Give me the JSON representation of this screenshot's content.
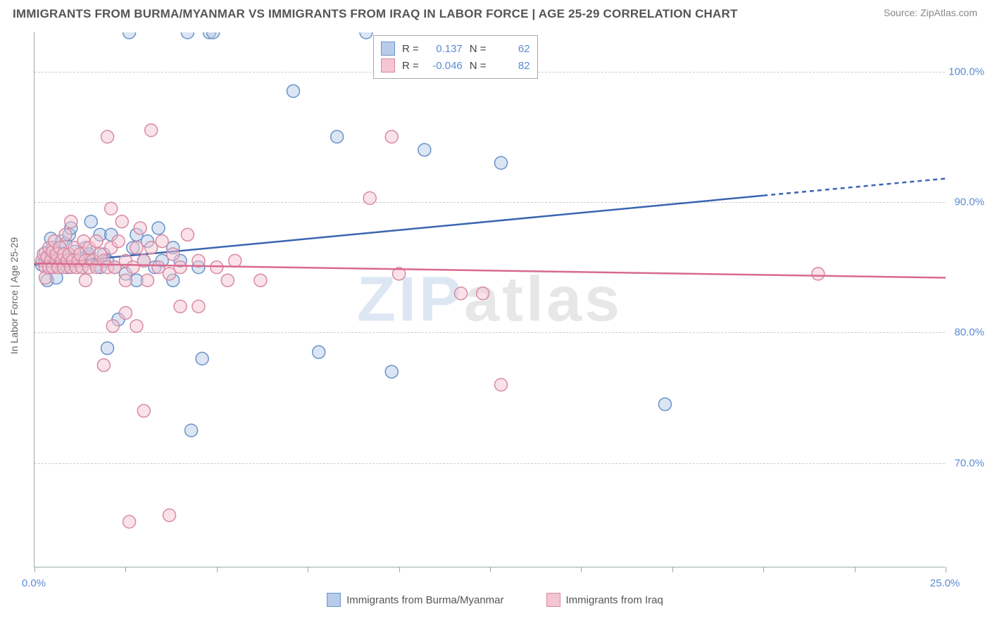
{
  "header": {
    "title": "IMMIGRANTS FROM BURMA/MYANMAR VS IMMIGRANTS FROM IRAQ IN LABOR FORCE | AGE 25-29 CORRELATION CHART",
    "source": "Source: ZipAtlas.com"
  },
  "watermark": {
    "z": "ZIP",
    "rest": "atlas"
  },
  "chart": {
    "type": "scatter",
    "y_axis_title": "In Labor Force | Age 25-29",
    "xlim": [
      0,
      25
    ],
    "ylim": [
      62,
      103
    ],
    "x_tick_positions": [
      0,
      2.5,
      5,
      7.5,
      10,
      12.5,
      15,
      17.5,
      20,
      22.5,
      25
    ],
    "x_tick_labels": {
      "0": "0.0%",
      "25": "25.0%"
    },
    "y_grid": [
      70,
      80,
      90,
      100
    ],
    "y_tick_labels": {
      "70": "70.0%",
      "80": "80.0%",
      "90": "90.0%",
      "100": "100.0%"
    },
    "background_color": "#ffffff",
    "grid_color": "#cccccc",
    "axis_color": "#99aaaa",
    "label_color": "#5b8bd4",
    "marker_radius": 9,
    "marker_opacity": 0.5,
    "marker_border_width": 1.5,
    "series": [
      {
        "name": "Immigrants from Burma/Myanmar",
        "fill": "#b7cce8",
        "stroke": "#6a93c9",
        "trend_color": "#3a66b0",
        "R": "0.137",
        "N": "62",
        "trend": {
          "x1": 0,
          "y1": 85.2,
          "x2_solid": 20,
          "y2_solid": 90.5,
          "x2": 25,
          "y2": 91.8
        },
        "points": [
          [
            0.2,
            85.2
          ],
          [
            0.3,
            86.1
          ],
          [
            0.35,
            84.0
          ],
          [
            0.4,
            85.8
          ],
          [
            0.45,
            87.2
          ],
          [
            0.5,
            85.0
          ],
          [
            0.5,
            86.5
          ],
          [
            0.55,
            85.3
          ],
          [
            0.6,
            86.0
          ],
          [
            0.6,
            84.2
          ],
          [
            0.7,
            85.5
          ],
          [
            0.75,
            87.0
          ],
          [
            0.8,
            85.2
          ],
          [
            0.85,
            86.8
          ],
          [
            0.9,
            85.0
          ],
          [
            0.95,
            87.5
          ],
          [
            1.0,
            85.8
          ],
          [
            1.0,
            88.0
          ],
          [
            1.1,
            86.2
          ],
          [
            1.2,
            85.5
          ],
          [
            1.3,
            85.0
          ],
          [
            1.4,
            86.5
          ],
          [
            1.5,
            85.8
          ],
          [
            1.5,
            86.0
          ],
          [
            1.55,
            88.5
          ],
          [
            1.7,
            85.2
          ],
          [
            1.8,
            87.5
          ],
          [
            1.8,
            85.0
          ],
          [
            1.9,
            86.0
          ],
          [
            2.0,
            85.5
          ],
          [
            2.0,
            78.8
          ],
          [
            2.1,
            87.5
          ],
          [
            2.2,
            85.0
          ],
          [
            2.3,
            81.0
          ],
          [
            2.5,
            84.5
          ],
          [
            2.6,
            103.0
          ],
          [
            2.7,
            86.5
          ],
          [
            2.8,
            84.0
          ],
          [
            2.8,
            87.5
          ],
          [
            3.0,
            85.5
          ],
          [
            3.1,
            87.0
          ],
          [
            3.3,
            85.0
          ],
          [
            3.4,
            88.0
          ],
          [
            3.5,
            85.5
          ],
          [
            3.8,
            84.0
          ],
          [
            3.8,
            86.5
          ],
          [
            4.0,
            85.5
          ],
          [
            4.2,
            103.0
          ],
          [
            4.3,
            72.5
          ],
          [
            4.5,
            85.0
          ],
          [
            4.6,
            78.0
          ],
          [
            4.8,
            103.0
          ],
          [
            4.9,
            103.0
          ],
          [
            7.1,
            98.5
          ],
          [
            7.8,
            78.5
          ],
          [
            8.3,
            95.0
          ],
          [
            9.1,
            103.0
          ],
          [
            9.8,
            77.0
          ],
          [
            10.7,
            94.0
          ],
          [
            12.8,
            93.0
          ],
          [
            17.3,
            74.5
          ],
          [
            0.3,
            85.5
          ]
        ]
      },
      {
        "name": "Immigrants from Iraq",
        "fill": "#f3c6d2",
        "stroke": "#d98aa3",
        "trend_color": "#d86a8f",
        "R": "-0.046",
        "N": "82",
        "trend": {
          "x1": 0,
          "y1": 85.3,
          "x2_solid": 25,
          "y2_solid": 84.2,
          "x2": 25,
          "y2": 84.2
        },
        "points": [
          [
            0.2,
            85.5
          ],
          [
            0.25,
            86.0
          ],
          [
            0.3,
            85.0
          ],
          [
            0.3,
            84.2
          ],
          [
            0.35,
            85.8
          ],
          [
            0.4,
            86.5
          ],
          [
            0.4,
            85.0
          ],
          [
            0.45,
            85.5
          ],
          [
            0.5,
            86.2
          ],
          [
            0.5,
            85.0
          ],
          [
            0.55,
            87.0
          ],
          [
            0.6,
            85.5
          ],
          [
            0.6,
            86.0
          ],
          [
            0.65,
            85.0
          ],
          [
            0.7,
            86.5
          ],
          [
            0.75,
            85.5
          ],
          [
            0.8,
            86.0
          ],
          [
            0.8,
            85.0
          ],
          [
            0.85,
            87.5
          ],
          [
            0.9,
            85.5
          ],
          [
            0.95,
            86.0
          ],
          [
            1.0,
            85.0
          ],
          [
            1.0,
            88.5
          ],
          [
            1.05,
            85.5
          ],
          [
            1.1,
            86.5
          ],
          [
            1.15,
            85.0
          ],
          [
            1.2,
            85.5
          ],
          [
            1.25,
            86.0
          ],
          [
            1.3,
            85.0
          ],
          [
            1.35,
            87.0
          ],
          [
            1.4,
            85.5
          ],
          [
            1.4,
            84.0
          ],
          [
            1.5,
            86.5
          ],
          [
            1.5,
            85.0
          ],
          [
            1.6,
            85.5
          ],
          [
            1.7,
            87.0
          ],
          [
            1.7,
            85.0
          ],
          [
            1.8,
            86.0
          ],
          [
            1.9,
            85.5
          ],
          [
            1.9,
            77.5
          ],
          [
            2.0,
            85.0
          ],
          [
            2.0,
            95.0
          ],
          [
            2.1,
            86.5
          ],
          [
            2.1,
            89.5
          ],
          [
            2.15,
            80.5
          ],
          [
            2.2,
            85.0
          ],
          [
            2.3,
            87.0
          ],
          [
            2.4,
            88.5
          ],
          [
            2.5,
            85.5
          ],
          [
            2.5,
            84.0
          ],
          [
            2.5,
            81.5
          ],
          [
            2.6,
            65.5
          ],
          [
            2.7,
            85.0
          ],
          [
            2.8,
            86.5
          ],
          [
            2.8,
            80.5
          ],
          [
            2.9,
            88.0
          ],
          [
            3.0,
            85.5
          ],
          [
            3.0,
            74.0
          ],
          [
            3.1,
            84.0
          ],
          [
            3.2,
            86.5
          ],
          [
            3.2,
            95.5
          ],
          [
            3.4,
            85.0
          ],
          [
            3.5,
            87.0
          ],
          [
            3.7,
            84.5
          ],
          [
            3.7,
            66.0
          ],
          [
            3.8,
            86.0
          ],
          [
            4.0,
            85.0
          ],
          [
            4.0,
            82.0
          ],
          [
            4.2,
            87.5
          ],
          [
            4.5,
            85.5
          ],
          [
            4.5,
            82.0
          ],
          [
            5.0,
            85.0
          ],
          [
            5.3,
            84.0
          ],
          [
            5.5,
            85.5
          ],
          [
            6.2,
            84.0
          ],
          [
            9.2,
            90.3
          ],
          [
            9.8,
            95.0
          ],
          [
            10.0,
            84.5
          ],
          [
            11.7,
            83.0
          ],
          [
            12.3,
            83.0
          ],
          [
            12.8,
            76.0
          ],
          [
            21.5,
            84.5
          ]
        ]
      }
    ]
  },
  "legend_bottom": [
    {
      "label": "Immigrants from Burma/Myanmar",
      "fill": "#b7cce8",
      "stroke": "#6a93c9"
    },
    {
      "label": "Immigrants from Iraq",
      "fill": "#f3c6d2",
      "stroke": "#d98aa3"
    }
  ]
}
